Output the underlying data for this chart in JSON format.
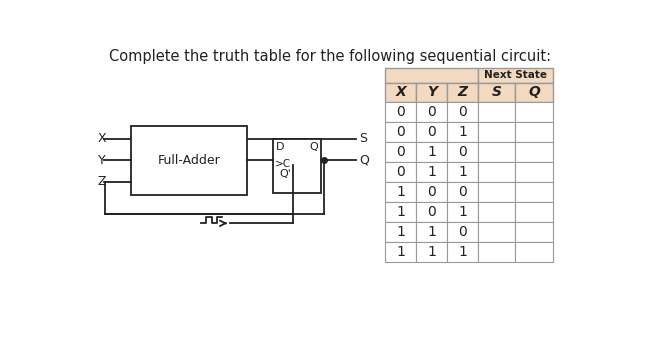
{
  "title": "Complete the truth table for the following sequential circuit:",
  "title_fontsize": 10.5,
  "table_header_bg": "#f2d9c0",
  "table_data_bg": "#ffffff",
  "table_border_color": "#999999",
  "col_labels": [
    "X",
    "Y",
    "Z",
    "S",
    "Q"
  ],
  "next_state_label": "Next State",
  "rows": [
    [
      "0",
      "0",
      "0",
      "",
      ""
    ],
    [
      "0",
      "0",
      "1",
      "",
      ""
    ],
    [
      "0",
      "1",
      "0",
      "",
      ""
    ],
    [
      "0",
      "1",
      "1",
      "",
      ""
    ],
    [
      "1",
      "0",
      "0",
      "",
      ""
    ],
    [
      "1",
      "0",
      "1",
      "",
      ""
    ],
    [
      "1",
      "1",
      "0",
      "",
      ""
    ],
    [
      "1",
      "1",
      "1",
      "",
      ""
    ]
  ],
  "bg": "#ffffff",
  "ink": "#222222"
}
